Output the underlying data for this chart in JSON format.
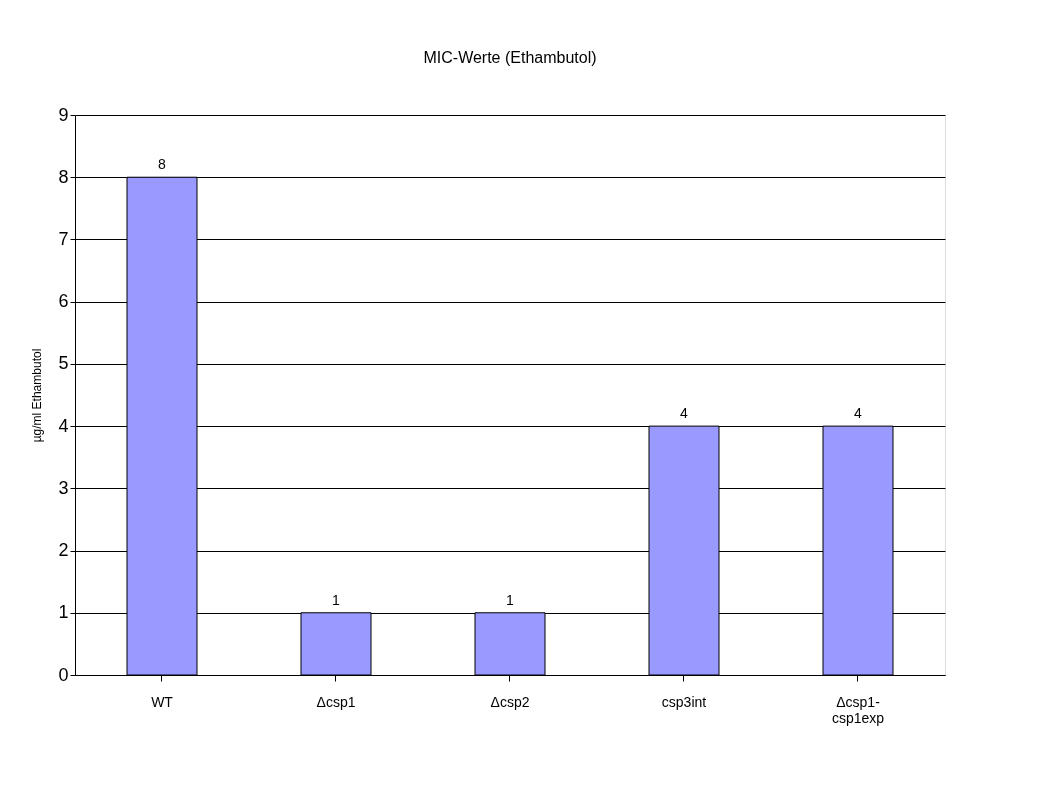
{
  "chart_data": {
    "type": "bar",
    "title": "MIC-Werte (Ethambutol)",
    "ylabel": "µg/ml Ethambutol",
    "categories": [
      "WT",
      "Δcsp1",
      "Δcsp2",
      "csp3int",
      "Δcsp1-csp1exp"
    ],
    "values": [
      8,
      1,
      1,
      4,
      4
    ],
    "color": "#9999ff",
    "ylim": [
      0,
      9
    ],
    "yticks": [
      0,
      1,
      2,
      3,
      4,
      5,
      6,
      7,
      8,
      9
    ],
    "grid": "y",
    "data_labels": true
  }
}
